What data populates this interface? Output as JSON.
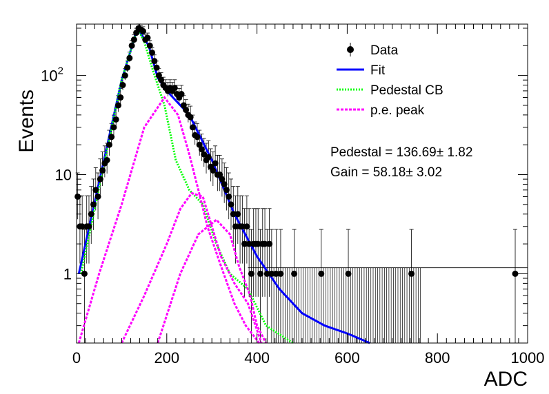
{
  "chart_data": {
    "type": "scatter",
    "xlabel": "ADC",
    "ylabel": "Events",
    "xlim": [
      0,
      1000
    ],
    "ylim": [
      0.2,
      330
    ],
    "yscale": "log",
    "grid": false,
    "legend_placement": "top-right",
    "x_ticks": [
      "0",
      "200",
      "400",
      "600",
      "800",
      "1000"
    ],
    "y_ticks": [
      {
        "value": 1,
        "label": "1"
      },
      {
        "value": 10,
        "label": "10"
      },
      {
        "value": 100,
        "label": "10",
        "sup": "2"
      }
    ],
    "legend": [
      {
        "label": "Data",
        "style": "marker",
        "color": "#000000"
      },
      {
        "label": "Fit",
        "style": "solid",
        "color": "#0000ff"
      },
      {
        "label": "Pedestal CB",
        "style": "dotted",
        "color": "#00ff00"
      },
      {
        "label": "p.e. peak",
        "style": "dashed",
        "color": "#ff00ff"
      }
    ],
    "fit_results": [
      {
        "text": "Pedestal = 136.69",
        "error": "1.82"
      },
      {
        "text": "Gain = 58.18",
        "error": "3.02"
      }
    ],
    "parameters": {
      "pedestal": 136.69,
      "gain": 58.18
    },
    "series": [
      {
        "name": "Data",
        "color": "#000000",
        "points": [
          [
            0,
            6
          ],
          [
            5,
            3
          ],
          [
            10,
            3
          ],
          [
            15,
            1
          ],
          [
            20,
            3
          ],
          [
            25,
            3
          ],
          [
            30,
            4
          ],
          [
            35,
            5
          ],
          [
            40,
            7
          ],
          [
            45,
            6
          ],
          [
            50,
            9
          ],
          [
            55,
            11
          ],
          [
            60,
            13
          ],
          [
            65,
            14
          ],
          [
            70,
            20
          ],
          [
            75,
            24
          ],
          [
            80,
            30
          ],
          [
            85,
            36
          ],
          [
            90,
            50
          ],
          [
            95,
            60
          ],
          [
            100,
            80
          ],
          [
            105,
            100
          ],
          [
            110,
            120
          ],
          [
            115,
            150
          ],
          [
            120,
            200
          ],
          [
            125,
            230
          ],
          [
            130,
            270
          ],
          [
            135,
            300
          ],
          [
            140,
            290
          ],
          [
            145,
            280
          ],
          [
            150,
            230
          ],
          [
            155,
            240
          ],
          [
            160,
            200
          ],
          [
            165,
            170
          ],
          [
            170,
            140
          ],
          [
            175,
            120
          ],
          [
            180,
            100
          ],
          [
            185,
            90
          ],
          [
            190,
            80
          ],
          [
            195,
            75
          ],
          [
            200,
            70
          ],
          [
            205,
            75
          ],
          [
            210,
            70
          ],
          [
            215,
            75
          ],
          [
            220,
            65
          ],
          [
            225,
            60
          ],
          [
            230,
            65
          ],
          [
            235,
            50
          ],
          [
            240,
            45
          ],
          [
            245,
            40
          ],
          [
            250,
            38
          ],
          [
            255,
            30
          ],
          [
            260,
            25
          ],
          [
            265,
            24
          ],
          [
            270,
            20
          ],
          [
            275,
            18
          ],
          [
            280,
            16
          ],
          [
            285,
            14
          ],
          [
            290,
            15
          ],
          [
            295,
            12
          ],
          [
            300,
            11
          ],
          [
            305,
            13
          ],
          [
            310,
            10
          ],
          [
            315,
            10
          ],
          [
            320,
            9
          ],
          [
            325,
            8
          ],
          [
            330,
            7
          ],
          [
            335,
            6
          ],
          [
            340,
            5
          ],
          [
            345,
            4
          ],
          [
            350,
            3
          ],
          [
            355,
            4
          ],
          [
            360,
            3
          ],
          [
            365,
            3
          ],
          [
            370,
            2
          ],
          [
            375,
            3
          ],
          [
            380,
            2
          ],
          [
            385,
            1
          ],
          [
            390,
            2
          ],
          [
            395,
            2
          ],
          [
            400,
            2
          ],
          [
            405,
            1
          ],
          [
            410,
            2
          ],
          [
            415,
            2
          ],
          [
            420,
            1
          ],
          [
            425,
            2
          ],
          [
            430,
            1
          ],
          [
            440,
            1
          ],
          [
            450,
            1
          ],
          [
            480,
            1
          ],
          [
            540,
            1
          ],
          [
            600,
            1
          ],
          [
            740,
            1
          ],
          [
            970,
            1
          ]
        ]
      },
      {
        "name": "Fit",
        "color": "#0000ff",
        "style": "solid",
        "points": [
          [
            5,
            1
          ],
          [
            100,
            90
          ],
          [
            135,
            300
          ],
          [
            160,
            200
          ],
          [
            180,
            95
          ],
          [
            200,
            70
          ],
          [
            250,
            40
          ],
          [
            300,
            14
          ],
          [
            350,
            4
          ],
          [
            400,
            1.5
          ],
          [
            450,
            0.7
          ],
          [
            500,
            0.4
          ],
          [
            550,
            0.3
          ],
          [
            600,
            0.25
          ],
          [
            650,
            0.2
          ]
        ]
      },
      {
        "name": "Pedestal CB",
        "color": "#00ff00",
        "style": "dotted",
        "points": [
          [
            10,
            1
          ],
          [
            100,
            90
          ],
          [
            135,
            300
          ],
          [
            150,
            220
          ],
          [
            170,
            110
          ],
          [
            195,
            50
          ],
          [
            220,
            14
          ],
          [
            250,
            7
          ],
          [
            280,
            5
          ],
          [
            310,
            2
          ],
          [
            340,
            1
          ],
          [
            380,
            0.7
          ],
          [
            420,
            0.3
          ],
          [
            480,
            0.2
          ]
        ]
      },
      {
        "name": "p.e. peak 1",
        "color": "#ff00ff",
        "style": "dashed",
        "points": [
          [
            5,
            0.2
          ],
          [
            50,
            1
          ],
          [
            100,
            5
          ],
          [
            150,
            30
          ],
          [
            195,
            60
          ],
          [
            225,
            40
          ],
          [
            250,
            16
          ],
          [
            270,
            7
          ],
          [
            290,
            3
          ],
          [
            320,
            1.2
          ],
          [
            350,
            0.5
          ],
          [
            375,
            0.3
          ],
          [
            405,
            0.2
          ]
        ]
      },
      {
        "name": "p.e. peak 2",
        "color": "#ff00ff",
        "style": "dashed",
        "points": [
          [
            100,
            0.2
          ],
          [
            150,
            0.6
          ],
          [
            200,
            2
          ],
          [
            230,
            4.5
          ],
          [
            255,
            6.5
          ],
          [
            280,
            6
          ],
          [
            300,
            3
          ],
          [
            320,
            1.5
          ],
          [
            350,
            0.8
          ],
          [
            380,
            0.5
          ],
          [
            410,
            0.2
          ]
        ]
      },
      {
        "name": "p.e. peak 3",
        "color": "#ff00ff",
        "style": "dashed",
        "points": [
          [
            180,
            0.2
          ],
          [
            230,
            1
          ],
          [
            270,
            2.5
          ],
          [
            310,
            3.5
          ],
          [
            340,
            2.5
          ],
          [
            360,
            1.2
          ],
          [
            385,
            0.6
          ],
          [
            400,
            0.3
          ],
          [
            420,
            0.2
          ]
        ]
      }
    ]
  }
}
